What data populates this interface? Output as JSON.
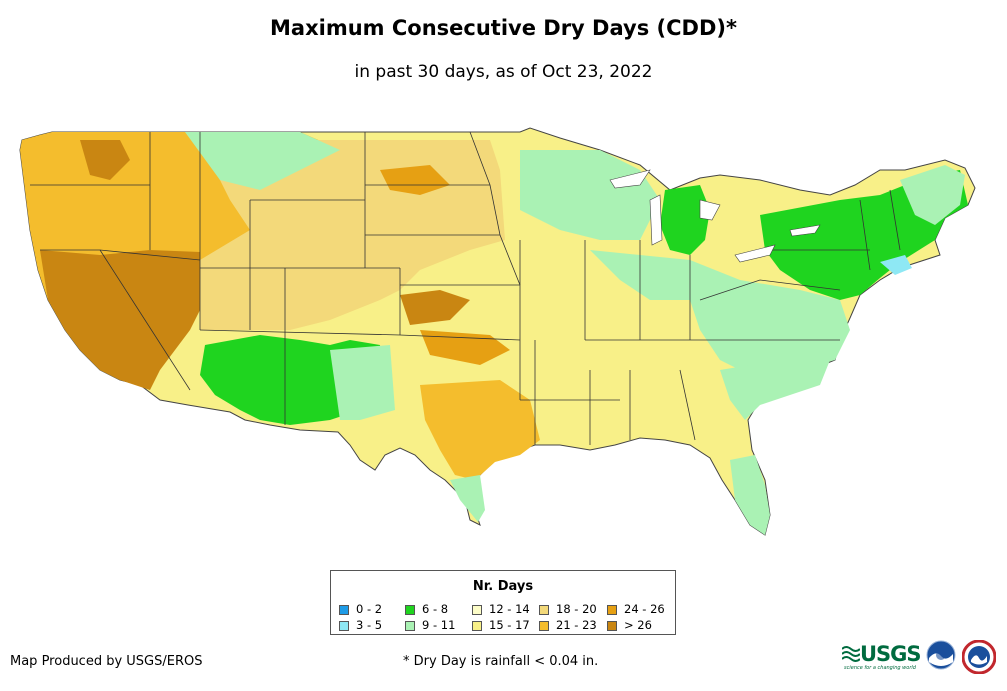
{
  "title": "Maximum Consecutive Dry Days (CDD)*",
  "subtitle": "in past 30 days, as of Oct 23, 2022",
  "legend": {
    "title": "Nr. Days",
    "items": [
      {
        "label": "0 - 2",
        "color": "#1e9be6"
      },
      {
        "label": "3 - 5",
        "color": "#8ee8f4"
      },
      {
        "label": "6 - 8",
        "color": "#1fd41f"
      },
      {
        "label": "9 - 11",
        "color": "#aaf2b4"
      },
      {
        "label": "12 - 14",
        "color": "#fdfdc8"
      },
      {
        "label": "15 - 17",
        "color": "#f8f088"
      },
      {
        "label": "18 - 20",
        "color": "#f3d97a"
      },
      {
        "label": "21 - 23",
        "color": "#f4bd2d"
      },
      {
        "label": "24 - 26",
        "color": "#e6a013"
      },
      {
        "label": "> 26",
        "color": "#c98612"
      }
    ]
  },
  "credit": "Map Produced by USGS/EROS",
  "footnote": "* Dry Day is rainfall < 0.04 in.",
  "logos": {
    "usgs": "USGS",
    "usgs_tagline": "science for a changing world"
  }
}
